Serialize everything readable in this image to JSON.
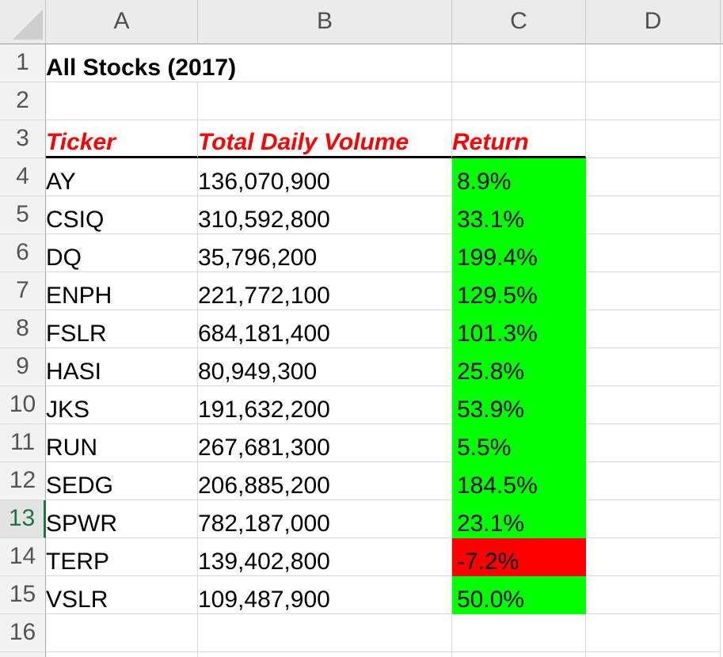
{
  "sheet": {
    "column_headers": [
      "A",
      "B",
      "C",
      "D"
    ],
    "selected_row": 13,
    "title_cell": "All Stocks (2017)",
    "rows": [
      {
        "n": 1,
        "a": "All Stocks (2017)",
        "row_style": "title"
      },
      {
        "n": 2
      },
      {
        "n": 3,
        "a": "Ticker",
        "b": "Total Daily Volume",
        "c": "Return",
        "row_style": "header"
      },
      {
        "n": 4,
        "a": "AY",
        "b": "136,070,900",
        "c": "8.9%",
        "fill": "positive"
      },
      {
        "n": 5,
        "a": "CSIQ",
        "b": "310,592,800",
        "c": "33.1%",
        "fill": "positive"
      },
      {
        "n": 6,
        "a": "DQ",
        "b": "35,796,200",
        "c": "199.4%",
        "fill": "positive"
      },
      {
        "n": 7,
        "a": "ENPH",
        "b": "221,772,100",
        "c": "129.5%",
        "fill": "positive"
      },
      {
        "n": 8,
        "a": "FSLR",
        "b": "684,181,400",
        "c": "101.3%",
        "fill": "positive"
      },
      {
        "n": 9,
        "a": "HASI",
        "b": "80,949,300",
        "c": "25.8%",
        "fill": "positive"
      },
      {
        "n": 10,
        "a": "JKS",
        "b": "191,632,200",
        "c": "53.9%",
        "fill": "positive"
      },
      {
        "n": 11,
        "a": "RUN",
        "b": "267,681,300",
        "c": "5.5%",
        "fill": "positive"
      },
      {
        "n": 12,
        "a": "SEDG",
        "b": "206,885,200",
        "c": "184.5%",
        "fill": "positive"
      },
      {
        "n": 13,
        "a": "SPWR",
        "b": "782,187,000",
        "c": "23.1%",
        "fill": "positive"
      },
      {
        "n": 14,
        "a": "TERP",
        "b": "139,402,800",
        "c": "-7.2%",
        "fill": "negative"
      },
      {
        "n": 15,
        "a": "VSLR",
        "b": "109,487,900",
        "c": "50.0%",
        "fill": "positive"
      },
      {
        "n": 16
      }
    ]
  },
  "colors": {
    "positive_fill": "#00ff00",
    "negative_fill": "#ff0000",
    "header_text": "#ff0000",
    "title_text": "#000000",
    "selected_accent": "#217346"
  }
}
